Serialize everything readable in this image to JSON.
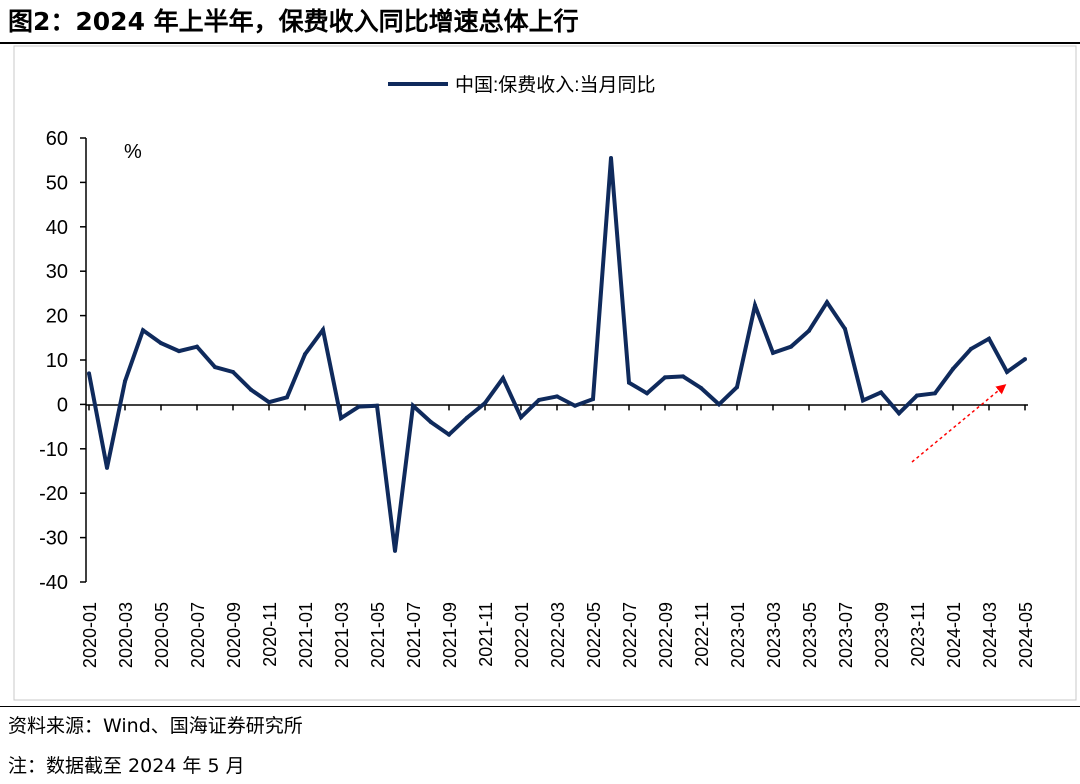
{
  "header": {
    "figure_title": "图2：2024 年上半年，保费收入同比增速总体上行"
  },
  "footer": {
    "source": "资料来源：Wind、国海证券研究所",
    "note": "注：数据截至 2024 年 5 月"
  },
  "chart_data": {
    "type": "line",
    "title": "",
    "ylabel": "%",
    "xlabel": "",
    "ylim": [
      -40,
      60
    ],
    "yticks": [
      "60",
      "50",
      "40",
      "30",
      "20",
      "10",
      "0",
      "-10",
      "-20",
      "-30",
      "-40"
    ],
    "xtick_labels": [
      "2020-01",
      "2020-03",
      "2020-05",
      "2020-07",
      "2020-09",
      "2020-11",
      "2021-01",
      "2021-03",
      "2021-05",
      "2021-07",
      "2021-09",
      "2021-11",
      "2022-01",
      "2022-03",
      "2022-05",
      "2022-07",
      "2022-09",
      "2022-11",
      "2023-01",
      "2023-03",
      "2023-05",
      "2023-07",
      "2023-09",
      "2023-11",
      "2024-01",
      "2024-03",
      "2024-05"
    ],
    "legend": {
      "position": "top-center",
      "entries": [
        "中国:保费收入:当月同比"
      ]
    },
    "series": [
      {
        "name": "中国:保费收入:当月同比",
        "color": "#0f2a5c",
        "x": [
          "2020-01",
          "2020-02",
          "2020-03",
          "2020-04",
          "2020-05",
          "2020-06",
          "2020-07",
          "2020-08",
          "2020-09",
          "2020-10",
          "2020-11",
          "2020-12",
          "2021-01",
          "2021-02",
          "2021-03",
          "2021-04",
          "2021-05",
          "2021-06",
          "2021-07",
          "2021-08",
          "2021-09",
          "2021-10",
          "2021-11",
          "2021-12",
          "2022-01",
          "2022-02",
          "2022-03",
          "2022-04",
          "2022-05",
          "2022-06",
          "2022-07",
          "2022-08",
          "2022-09",
          "2022-10",
          "2022-11",
          "2022-12",
          "2023-01",
          "2023-02",
          "2023-03",
          "2023-04",
          "2023-05",
          "2023-06",
          "2023-07",
          "2023-08",
          "2023-09",
          "2023-10",
          "2023-11",
          "2023-12",
          "2024-01",
          "2024-02",
          "2024-03",
          "2024-04",
          "2024-05"
        ],
        "values": [
          7.0,
          -14.3,
          5.2,
          16.7,
          13.8,
          12.0,
          13.0,
          8.4,
          7.3,
          3.3,
          0.5,
          1.6,
          11.3,
          16.8,
          -3.1,
          -0.5,
          -0.3,
          -33.0,
          -0.3,
          -4.0,
          -6.8,
          -3.0,
          0.3,
          5.9,
          -2.9,
          1.0,
          1.8,
          -0.3,
          1.2,
          55.5,
          4.9,
          2.5,
          6.1,
          6.3,
          3.7,
          0.0,
          3.9,
          22.3,
          11.6,
          13.0,
          16.6,
          23.0,
          17.0,
          0.9,
          2.7,
          -2.0,
          2.0,
          2.5,
          8.0,
          12.5,
          14.8,
          7.3,
          10.2
        ]
      }
    ],
    "annotation": {
      "type": "arrow",
      "color": "#ff0000",
      "style": "dashed",
      "meaning": "upward trend in 2024"
    }
  }
}
